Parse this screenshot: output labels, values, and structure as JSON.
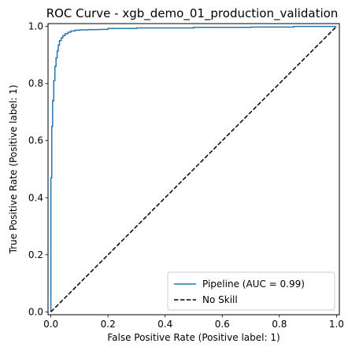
{
  "chart_data": {
    "type": "line",
    "title": "ROC Curve - xgb_demo_01_production_validation",
    "xlabel": "False Positive Rate (Positive label: 1)",
    "ylabel": "True Positive Rate (Positive label: 1)",
    "xlim": [
      -0.01,
      1.01
    ],
    "ylim": [
      -0.01,
      1.01
    ],
    "xticks": [
      0.0,
      0.2,
      0.4,
      0.6,
      0.8,
      1.0
    ],
    "yticks": [
      0.0,
      0.2,
      0.4,
      0.6,
      0.8,
      1.0
    ],
    "xtick_labels": [
      "0.0",
      "0.2",
      "0.4",
      "0.6",
      "0.8",
      "1.0"
    ],
    "ytick_labels": [
      "0.0",
      "0.2",
      "0.4",
      "0.6",
      "0.8",
      "1.0"
    ],
    "legend_position": "lower-right",
    "grid": false,
    "series": [
      {
        "name": "Pipeline (AUC = 0.99)",
        "color": "#1f77b4",
        "style": "solid",
        "x": [
          0.0,
          0.0,
          0.003,
          0.003,
          0.006,
          0.006,
          0.01,
          0.01,
          0.014,
          0.014,
          0.018,
          0.018,
          0.022,
          0.022,
          0.026,
          0.026,
          0.03,
          0.03,
          0.036,
          0.036,
          0.042,
          0.042,
          0.05,
          0.05,
          0.06,
          0.06,
          0.07,
          0.07,
          0.085,
          0.085,
          0.1,
          0.1,
          0.13,
          0.13,
          0.16,
          0.2,
          0.2,
          0.3,
          0.3,
          0.5,
          0.5,
          0.7,
          0.7,
          0.85,
          0.85,
          1.0
        ],
        "y": [
          0.0,
          0.47,
          0.47,
          0.65,
          0.65,
          0.74,
          0.74,
          0.81,
          0.81,
          0.86,
          0.86,
          0.89,
          0.89,
          0.915,
          0.915,
          0.935,
          0.935,
          0.95,
          0.95,
          0.96,
          0.96,
          0.968,
          0.968,
          0.975,
          0.975,
          0.98,
          0.98,
          0.984,
          0.984,
          0.987,
          0.987,
          0.988,
          0.988,
          0.989,
          0.989,
          0.99,
          0.993,
          0.993,
          0.995,
          0.995,
          0.997,
          0.997,
          0.998,
          0.998,
          1.0,
          1.0
        ]
      },
      {
        "name": "No Skill",
        "color": "#000000",
        "style": "dashed",
        "x": [
          0.0,
          1.0
        ],
        "y": [
          0.0,
          1.0
        ]
      }
    ]
  }
}
